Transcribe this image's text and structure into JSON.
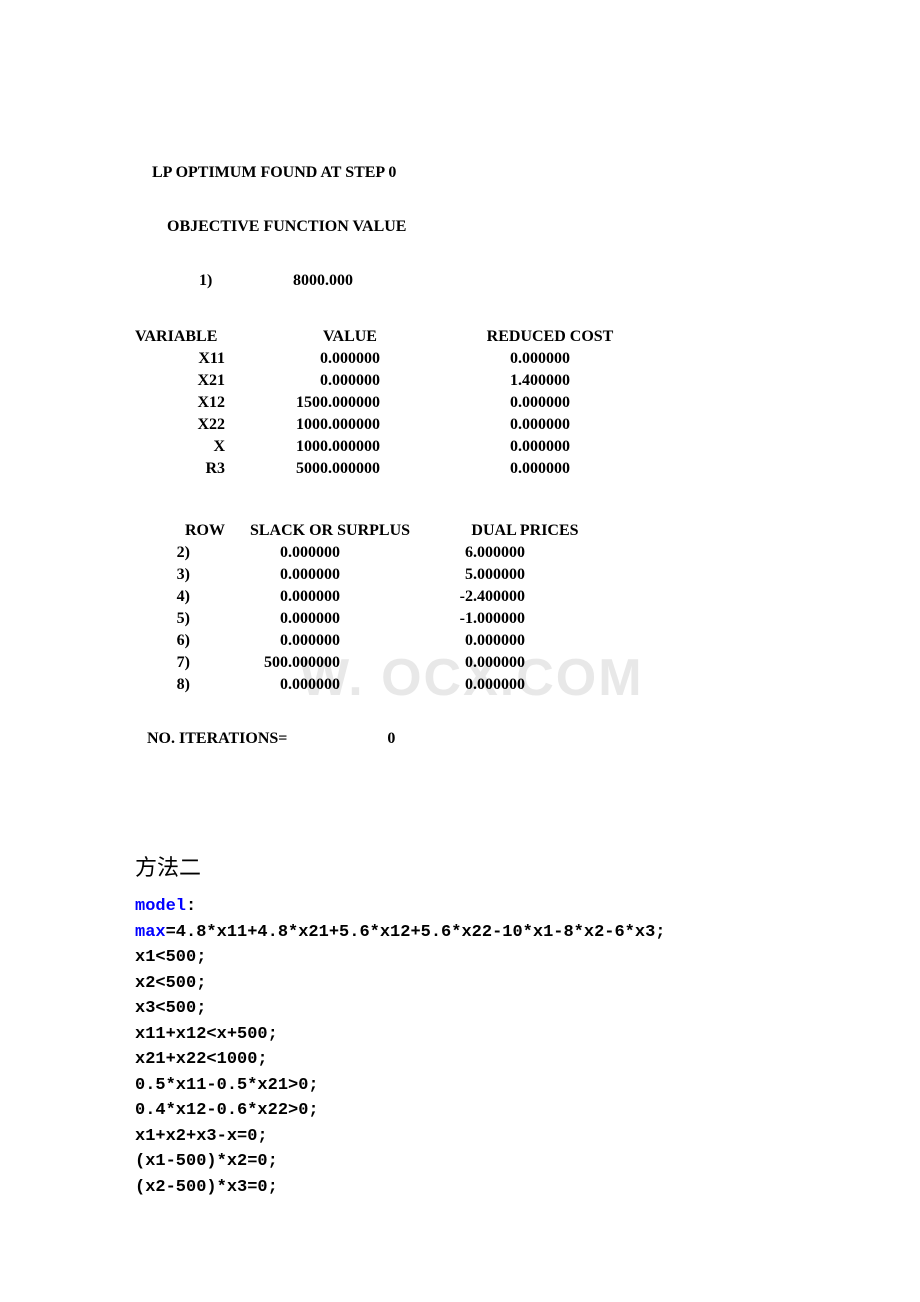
{
  "output": {
    "line1": "LP OPTIMUM FOUND AT STEP           0",
    "line2": "OBJECTIVE FUNCTION VALUE",
    "objective_label": "1)",
    "objective_value": "8000.000",
    "var_headers": {
      "col1": "VARIABLE",
      "col2": "VALUE",
      "col3": "REDUCED COST"
    },
    "variables": [
      {
        "name": "X11",
        "value": "0.000000",
        "reduced": "0.000000"
      },
      {
        "name": "X21",
        "value": "0.000000",
        "reduced": "1.400000"
      },
      {
        "name": "X12",
        "value": "1500.000000",
        "reduced": "0.000000"
      },
      {
        "name": "X22",
        "value": "1000.000000",
        "reduced": "0.000000"
      },
      {
        "name": "X",
        "value": "1000.000000",
        "reduced": "0.000000"
      },
      {
        "name": "R3",
        "value": "5000.000000",
        "reduced": "0.000000"
      }
    ],
    "row_headers": {
      "col1": "ROW",
      "col2": "SLACK OR SURPLUS",
      "col3": "DUAL PRICES"
    },
    "rows": [
      {
        "row": "2)",
        "slack": "0.000000",
        "dual": "6.000000"
      },
      {
        "row": "3)",
        "slack": "0.000000",
        "dual": "5.000000"
      },
      {
        "row": "4)",
        "slack": "0.000000",
        "dual": "-2.400000"
      },
      {
        "row": "5)",
        "slack": "0.000000",
        "dual": "-1.000000"
      },
      {
        "row": "6)",
        "slack": "0.000000",
        "dual": "0.000000"
      },
      {
        "row": "7)",
        "slack": "500.000000",
        "dual": "0.000000"
      },
      {
        "row": "8)",
        "slack": "0.000000",
        "dual": "0.000000"
      }
    ],
    "iterations_label": "NO. ITERATIONS=",
    "iterations_value": "0"
  },
  "method2": {
    "title": "方法二",
    "code": [
      {
        "keyword": "model",
        "rest": ":"
      },
      {
        "keyword": "max",
        "rest": "=4.8*x11+4.8*x21+5.6*x12+5.6*x22-10*x1-8*x2-6*x3;"
      },
      {
        "keyword": "",
        "rest": "x1<500;"
      },
      {
        "keyword": "",
        "rest": "x2<500;"
      },
      {
        "keyword": "",
        "rest": "x3<500;"
      },
      {
        "keyword": "",
        "rest": "x11+x12<x+500;"
      },
      {
        "keyword": "",
        "rest": "x21+x22<1000;"
      },
      {
        "keyword": "",
        "rest": "0.5*x11-0.5*x21>0;"
      },
      {
        "keyword": "",
        "rest": "0.4*x12-0.6*x22>0;"
      },
      {
        "keyword": "",
        "rest": "x1+x2+x3-x=0;"
      },
      {
        "keyword": "",
        "rest": "(x1-500)*x2=0;"
      },
      {
        "keyword": "",
        "rest": "(x2-500)*x3=0;"
      }
    ]
  },
  "watermark": "W.  OCX.COM"
}
